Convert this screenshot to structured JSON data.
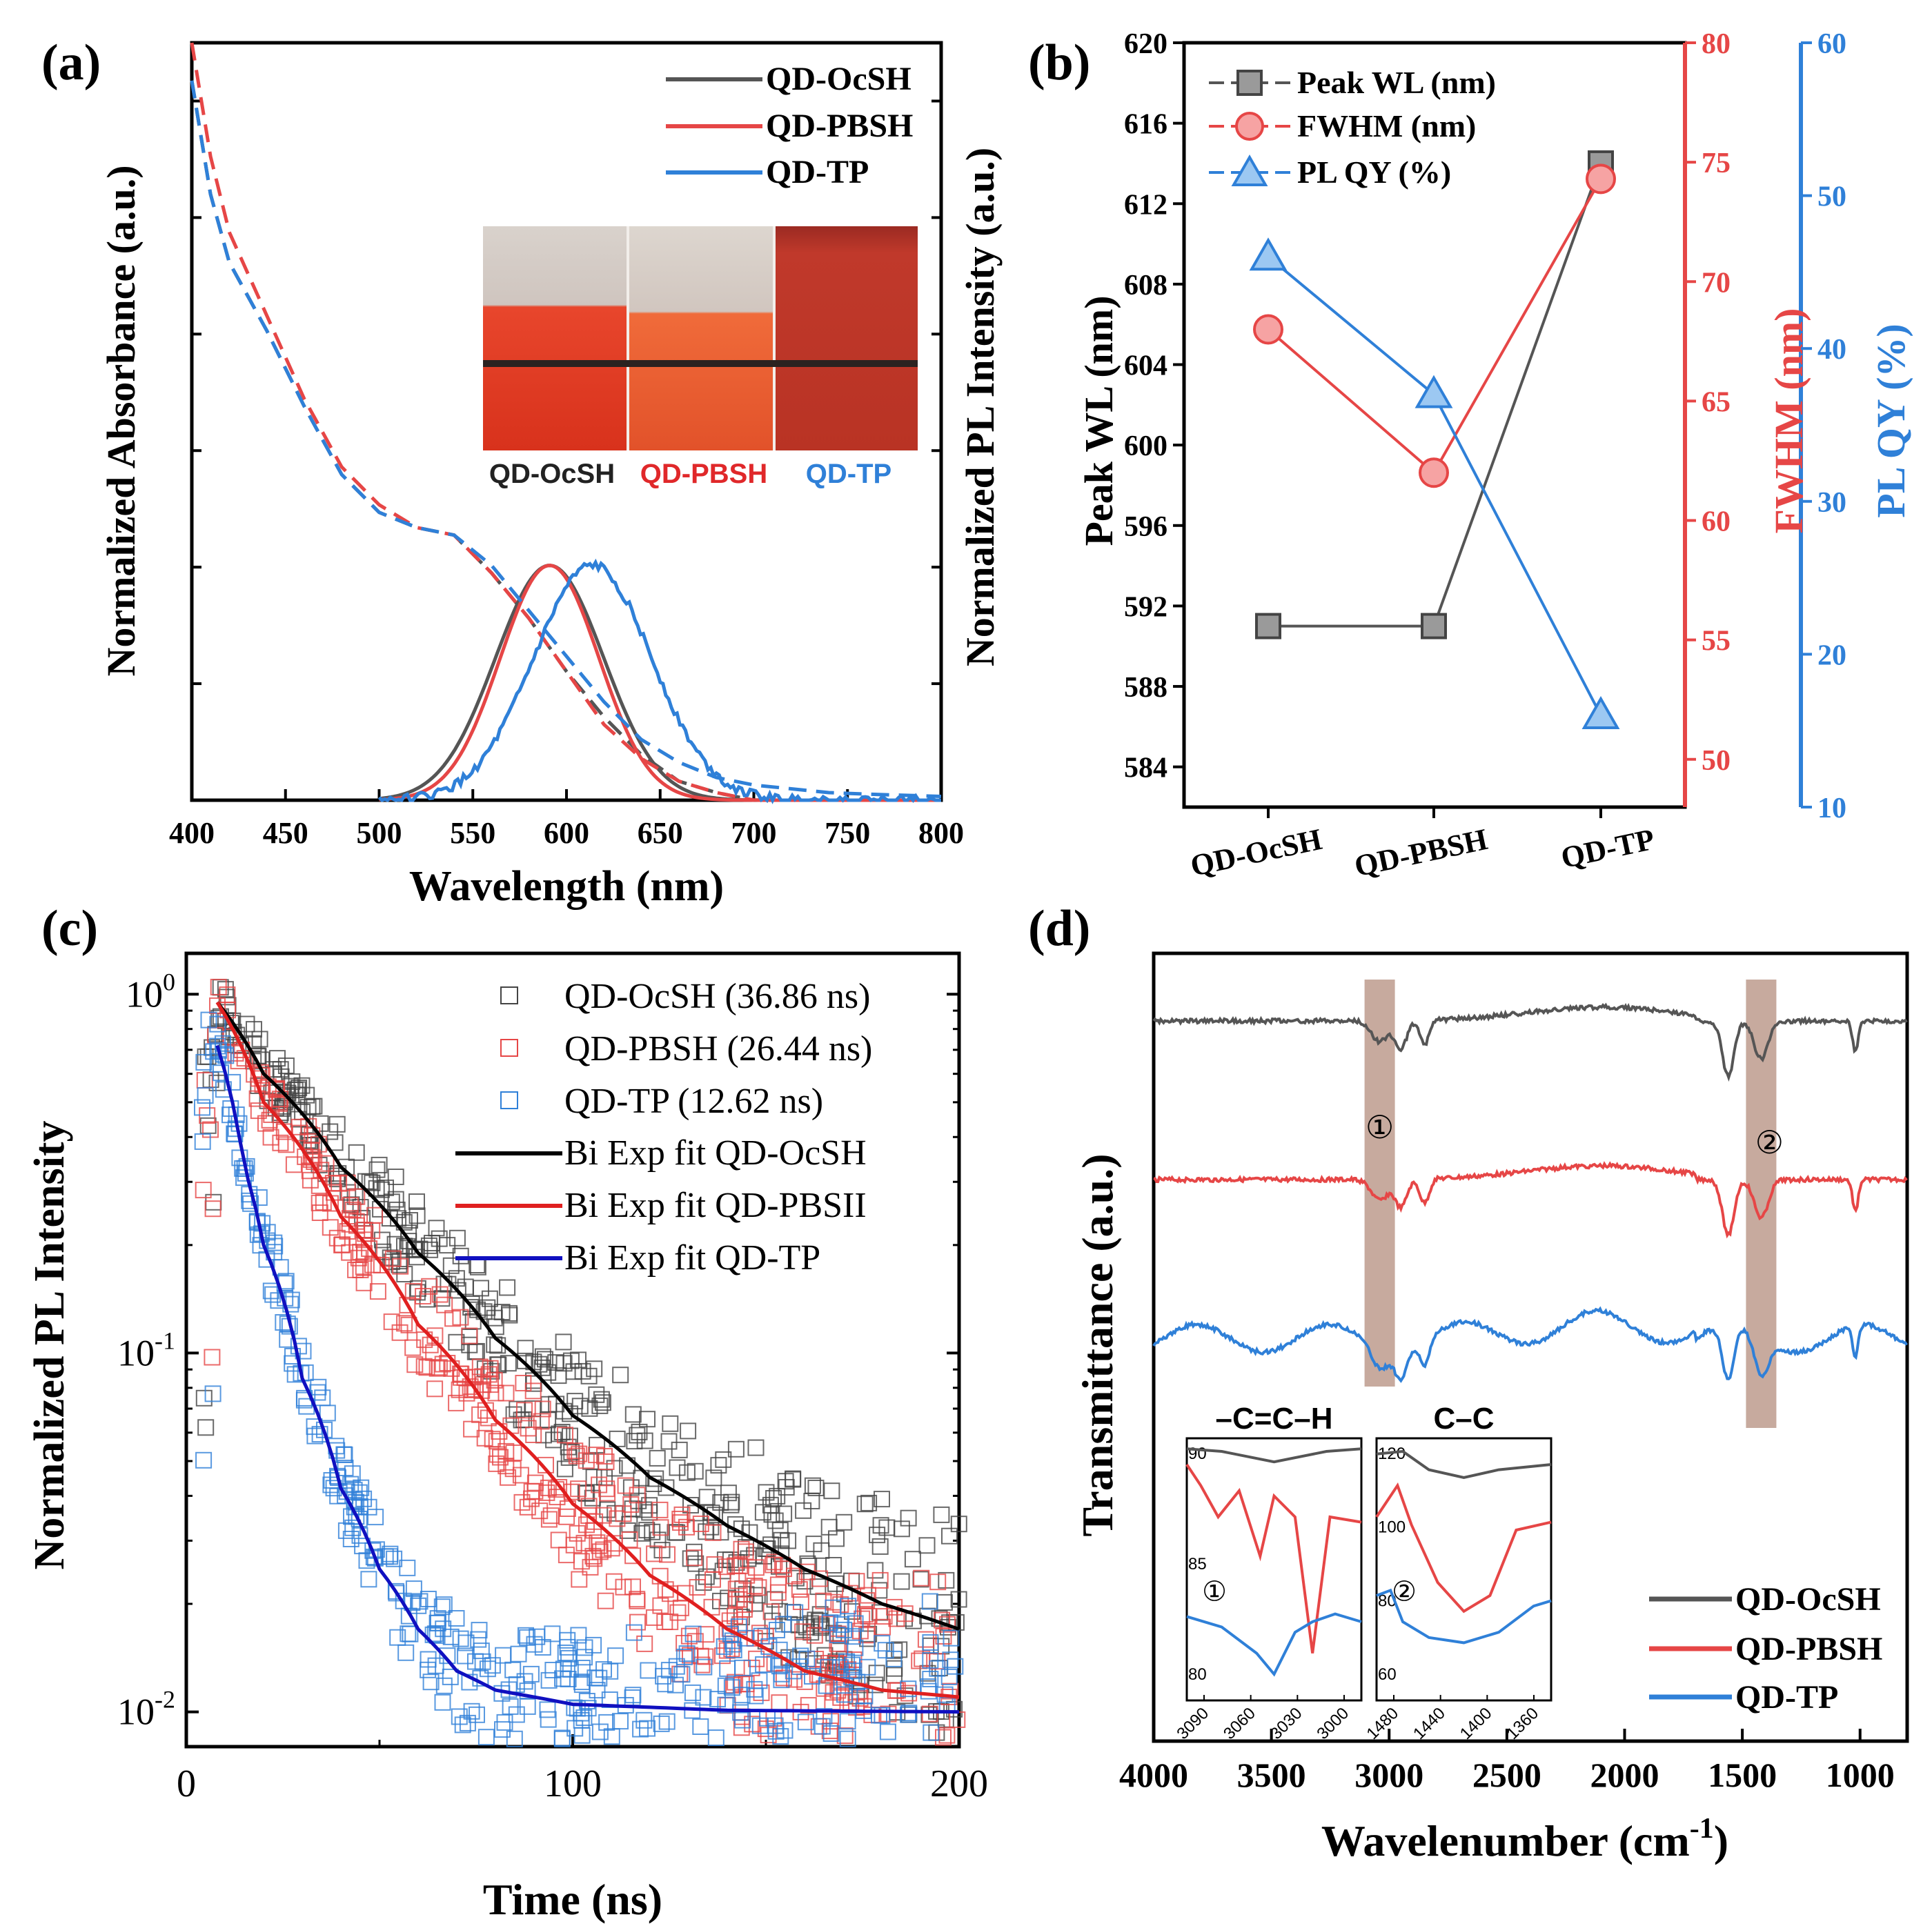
{
  "chart_data": [
    {
      "panel": "(a)",
      "type": "line",
      "xlabel": "Wavelength (nm)",
      "ylabel_left": "Normalized Absorbance (a.u.)",
      "ylabel_right": "Normalized PL Intensity (a.u.)",
      "xlim": [
        400,
        800
      ],
      "ylim": [
        0,
        1
      ],
      "xticks": [
        400,
        450,
        500,
        550,
        600,
        650,
        700,
        750,
        800
      ],
      "legend": [
        "QD-OcSH",
        "QD-PBSH",
        "QD-TP"
      ],
      "series": [
        {
          "name": "QD-OcSH",
          "color": "#555555",
          "absorbance": [
            [
              400,
              0.95
            ],
            [
              410,
              0.8
            ],
            [
              420,
              0.71
            ],
            [
              440,
              0.62
            ],
            [
              460,
              0.52
            ],
            [
              480,
              0.43
            ],
            [
              500,
              0.38
            ],
            [
              520,
              0.36
            ],
            [
              540,
              0.35
            ],
            [
              560,
              0.3
            ],
            [
              580,
              0.24
            ],
            [
              600,
              0.17
            ],
            [
              620,
              0.11
            ],
            [
              640,
              0.06
            ],
            [
              660,
              0.025
            ],
            [
              680,
              0.01
            ],
            [
              700,
              0
            ]
          ],
          "pl_peak_nm": 591,
          "pl_fwhm_nm": 68
        },
        {
          "name": "QD-PBSH",
          "color": "#e64646",
          "absorbance": [
            [
              400,
              1.0
            ],
            [
              410,
              0.85
            ],
            [
              420,
              0.75
            ],
            [
              440,
              0.64
            ],
            [
              460,
              0.53
            ],
            [
              480,
              0.44
            ],
            [
              500,
              0.39
            ],
            [
              520,
              0.36
            ],
            [
              540,
              0.35
            ],
            [
              560,
              0.3
            ],
            [
              580,
              0.24
            ],
            [
              600,
              0.17
            ],
            [
              620,
              0.1
            ],
            [
              640,
              0.055
            ],
            [
              660,
              0.025
            ],
            [
              680,
              0.01
            ],
            [
              700,
              0
            ]
          ],
          "pl_peak_nm": 591,
          "pl_fwhm_nm": 62
        },
        {
          "name": "QD-TP",
          "color": "#2f80d8",
          "absorbance": [
            [
              400,
              0.95
            ],
            [
              410,
              0.8
            ],
            [
              420,
              0.71
            ],
            [
              440,
              0.62
            ],
            [
              460,
              0.52
            ],
            [
              480,
              0.43
            ],
            [
              500,
              0.38
            ],
            [
              520,
              0.36
            ],
            [
              540,
              0.35
            ],
            [
              560,
              0.31
            ],
            [
              580,
              0.25
            ],
            [
              600,
              0.19
            ],
            [
              620,
              0.13
            ],
            [
              640,
              0.08
            ],
            [
              660,
              0.05
            ],
            [
              680,
              0.03
            ],
            [
              700,
              0.02
            ],
            [
              720,
              0.015
            ],
            [
              740,
              0.01
            ],
            [
              760,
              0.008
            ],
            [
              800,
              0.005
            ]
          ],
          "pl_peak_nm": 614,
          "pl_fwhm_nm": 74
        }
      ],
      "pl_max": 0.31,
      "inset_photo_labels": [
        "QD-OcSH",
        "QD-PBSH",
        "QD-TP"
      ]
    },
    {
      "panel": "(b)",
      "type": "line",
      "categories": [
        "QD-OcSH",
        "QD-PBSH",
        "QD-TP"
      ],
      "ylabel_left": "Peak WL (nm)",
      "ylabel_right1": "FWHM (nm)",
      "ylabel_right2": "PL QY (%)",
      "ylim_left": [
        582,
        620
      ],
      "yticks_left": [
        584,
        588,
        592,
        596,
        600,
        604,
        608,
        612,
        616,
        620
      ],
      "ylim_right1": [
        48,
        80
      ],
      "yticks_right1": [
        50,
        55,
        60,
        65,
        70,
        75,
        80
      ],
      "ylim_right2": [
        10,
        60
      ],
      "yticks_right2": [
        10,
        20,
        30,
        40,
        50,
        60
      ],
      "series": [
        {
          "name": "Peak WL (nm)",
          "color": "#555555",
          "values": [
            591,
            591,
            614
          ]
        },
        {
          "name": "FWHM (nm)",
          "color": "#e64646",
          "values": [
            68,
            62,
            74.3
          ]
        },
        {
          "name": "PL QY (%)",
          "color": "#2f80d8",
          "values": [
            46,
            37,
            16
          ]
        }
      ]
    },
    {
      "panel": "(c)",
      "type": "scatter",
      "xlabel": "Time (ns)",
      "ylabel": "Normalized PL Intensity",
      "yscale": "log",
      "xlim": [
        0,
        200
      ],
      "ylim": [
        0.008,
        1.3
      ],
      "xticks": [
        0,
        100,
        200
      ],
      "yticks": [
        {
          "base": "10",
          "exp": "0"
        },
        {
          "base": "10",
          "exp": "-1"
        },
        {
          "base": "10",
          "exp": "-2"
        }
      ],
      "legend_scatter": [
        "QD-OcSH (36.86 ns)",
        "QD-PBSH (26.44 ns)",
        "QD-TP (12.62 ns)"
      ],
      "legend_fit": [
        "Bi Exp fit QD-OcSH",
        "Bi Exp fit QD-PBSII",
        "Bi Exp fit QD-TP"
      ],
      "series": [
        {
          "name": "QD-OcSH",
          "lifetime_ns": 36.86,
          "color_marker": "#444444",
          "color_fit": "#000000",
          "fit": [
            [
              8,
              0.95
            ],
            [
              20,
              0.6
            ],
            [
              40,
              0.33
            ],
            [
              60,
              0.19
            ],
            [
              80,
              0.11
            ],
            [
              100,
              0.067
            ],
            [
              120,
              0.045
            ],
            [
              140,
              0.033
            ],
            [
              160,
              0.025
            ],
            [
              180,
              0.02
            ],
            [
              200,
              0.017
            ]
          ]
        },
        {
          "name": "QD-PBSH",
          "lifetime_ns": 26.44,
          "color_marker": "#e64646",
          "color_fit": "#e02020",
          "fit": [
            [
              8,
              0.95
            ],
            [
              20,
              0.5
            ],
            [
              40,
              0.24
            ],
            [
              60,
              0.12
            ],
            [
              80,
              0.065
            ],
            [
              100,
              0.038
            ],
            [
              120,
              0.024
            ],
            [
              140,
              0.017
            ],
            [
              160,
              0.013
            ],
            [
              180,
              0.0115
            ],
            [
              200,
              0.011
            ]
          ]
        },
        {
          "name": "QD-TP",
          "lifetime_ns": 12.62,
          "color_marker": "#2f80d8",
          "color_fit": "#1010c0",
          "fit": [
            [
              8,
              0.72
            ],
            [
              15,
              0.33
            ],
            [
              20,
              0.2
            ],
            [
              30,
              0.085
            ],
            [
              40,
              0.042
            ],
            [
              50,
              0.025
            ],
            [
              60,
              0.017
            ],
            [
              70,
              0.013
            ],
            [
              80,
              0.0115
            ],
            [
              100,
              0.0105
            ],
            [
              140,
              0.0101
            ],
            [
              200,
              0.01
            ]
          ]
        }
      ]
    },
    {
      "panel": "(d)",
      "type": "line",
      "xlabel": "Wavelenumber (cm",
      "xlabel_sup": "-1",
      "xlabel_end": ")",
      "ylabel": "Transmittance (a.u.)",
      "xlim": [
        4000,
        800
      ],
      "xticks": [
        4000,
        3500,
        3000,
        2500,
        2000,
        1500,
        1000
      ],
      "legend": [
        "QD-OcSH",
        "QD-PBSH",
        "QD-TP"
      ],
      "band_markers": [
        "①",
        "②"
      ],
      "bands_cm": [
        3040,
        1420
      ],
      "inset1": {
        "title": "–C=C–H",
        "xticks": [
          3090,
          3060,
          3030,
          3000
        ],
        "yticks": [
          90,
          85,
          80
        ],
        "marker": "①"
      },
      "inset2": {
        "title": "C–C",
        "xticks": [
          1480,
          1440,
          1400,
          1360
        ],
        "yticks": [
          120,
          100,
          80,
          60
        ],
        "marker": "②"
      }
    }
  ],
  "panel_labels": [
    "(a)",
    "(b)",
    "(c)",
    "(d)"
  ]
}
